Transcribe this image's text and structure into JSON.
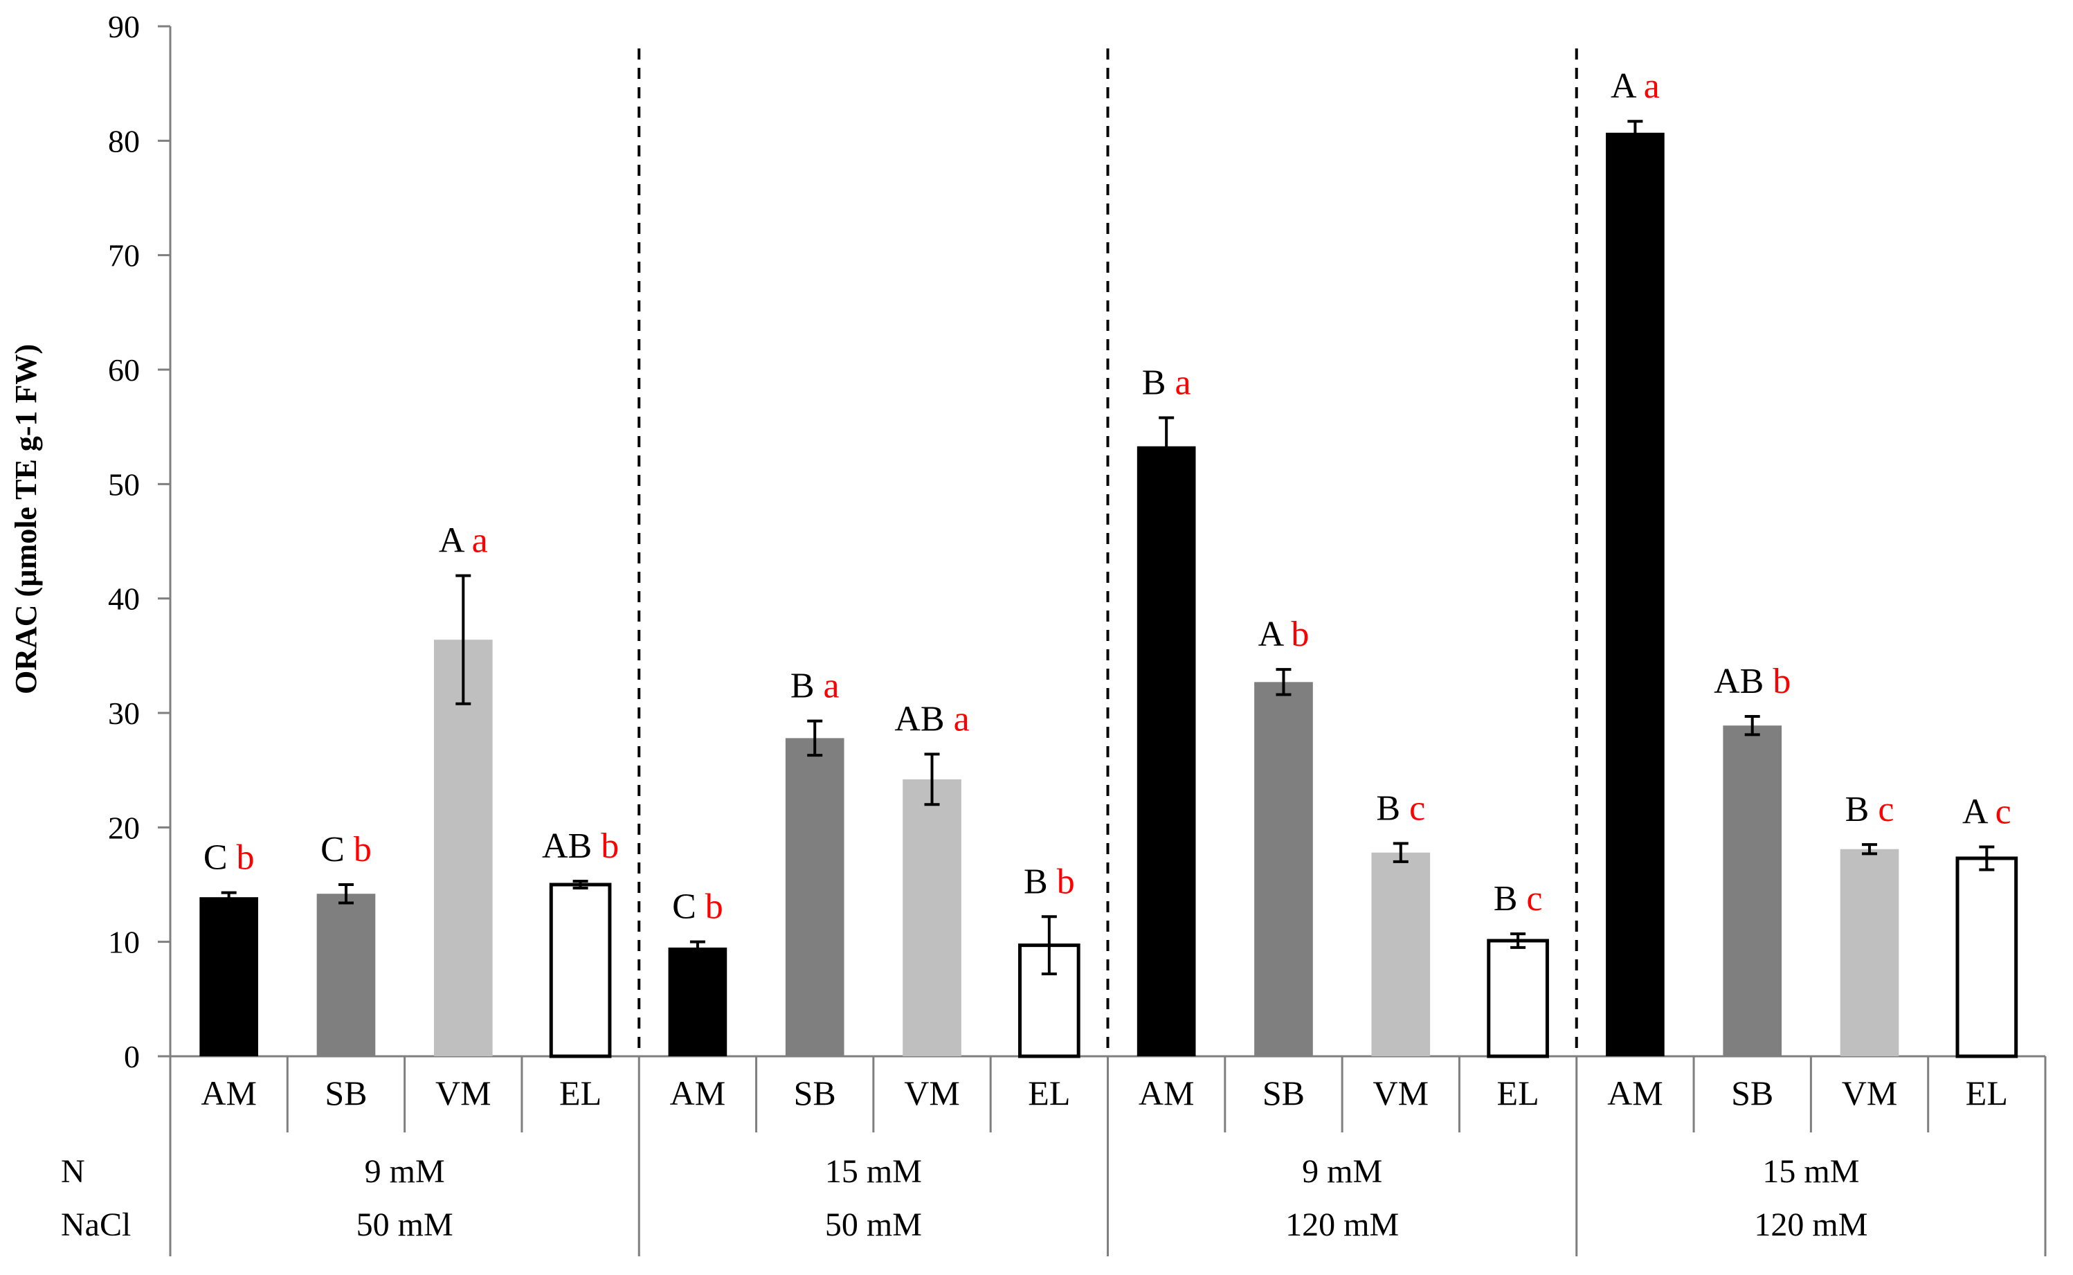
{
  "chart_data": {
    "type": "bar",
    "ylabel": "ORAC (µmole TE g-1 FW)",
    "ylim": [
      0,
      90
    ],
    "yticks": [
      0,
      10,
      20,
      30,
      40,
      50,
      60,
      70,
      80,
      90
    ],
    "row_labels": [
      "N",
      "NaCl"
    ],
    "categories": [
      "AM",
      "SB",
      "VM",
      "EL"
    ],
    "colors": {
      "AM": "#000000",
      "SB": "#7f7f7f",
      "VM": "#bfbfbf",
      "EL": "#ffffff",
      "sig_upper": "#000000",
      "sig_lower": "#ff0000",
      "axis": "#7f7f7f"
    },
    "groups": [
      {
        "n": "9 mM",
        "nacl": "50 mM",
        "bars": [
          {
            "category": "AM",
            "value": 13.9,
            "error": 0.4,
            "upper": "C",
            "lower": "b"
          },
          {
            "category": "SB",
            "value": 14.2,
            "error": 0.8,
            "upper": "C",
            "lower": "b"
          },
          {
            "category": "VM",
            "value": 36.4,
            "error": 5.6,
            "upper": "A",
            "lower": "a"
          },
          {
            "category": "EL",
            "value": 15.0,
            "error": 0.3,
            "upper": "AB",
            "lower": "b"
          }
        ]
      },
      {
        "n": "15 mM",
        "nacl": "50 mM",
        "bars": [
          {
            "category": "AM",
            "value": 9.5,
            "error": 0.5,
            "upper": "C",
            "lower": "b"
          },
          {
            "category": "SB",
            "value": 27.8,
            "error": 1.5,
            "upper": "B",
            "lower": "a"
          },
          {
            "category": "VM",
            "value": 24.2,
            "error": 2.2,
            "upper": "AB",
            "lower": "a"
          },
          {
            "category": "EL",
            "value": 9.7,
            "error": 2.5,
            "upper": "B",
            "lower": "b"
          }
        ]
      },
      {
        "n": "9 mM",
        "nacl": "120 mM",
        "bars": [
          {
            "category": "AM",
            "value": 53.3,
            "error": 2.5,
            "upper": "B",
            "lower": "a"
          },
          {
            "category": "SB",
            "value": 32.7,
            "error": 1.1,
            "upper": "A",
            "lower": "b"
          },
          {
            "category": "VM",
            "value": 17.8,
            "error": 0.8,
            "upper": "B",
            "lower": "c"
          },
          {
            "category": "EL",
            "value": 10.1,
            "error": 0.6,
            "upper": "B",
            "lower": "c"
          }
        ]
      },
      {
        "n": "15 mM",
        "nacl": "120 mM",
        "bars": [
          {
            "category": "AM",
            "value": 80.7,
            "error": 1.0,
            "upper": "A",
            "lower": "a"
          },
          {
            "category": "SB",
            "value": 28.9,
            "error": 0.8,
            "upper": "AB",
            "lower": "b"
          },
          {
            "category": "VM",
            "value": 18.1,
            "error": 0.4,
            "upper": "B",
            "lower": "c"
          },
          {
            "category": "EL",
            "value": 17.3,
            "error": 1.0,
            "upper": "A",
            "lower": "c"
          }
        ]
      }
    ]
  }
}
